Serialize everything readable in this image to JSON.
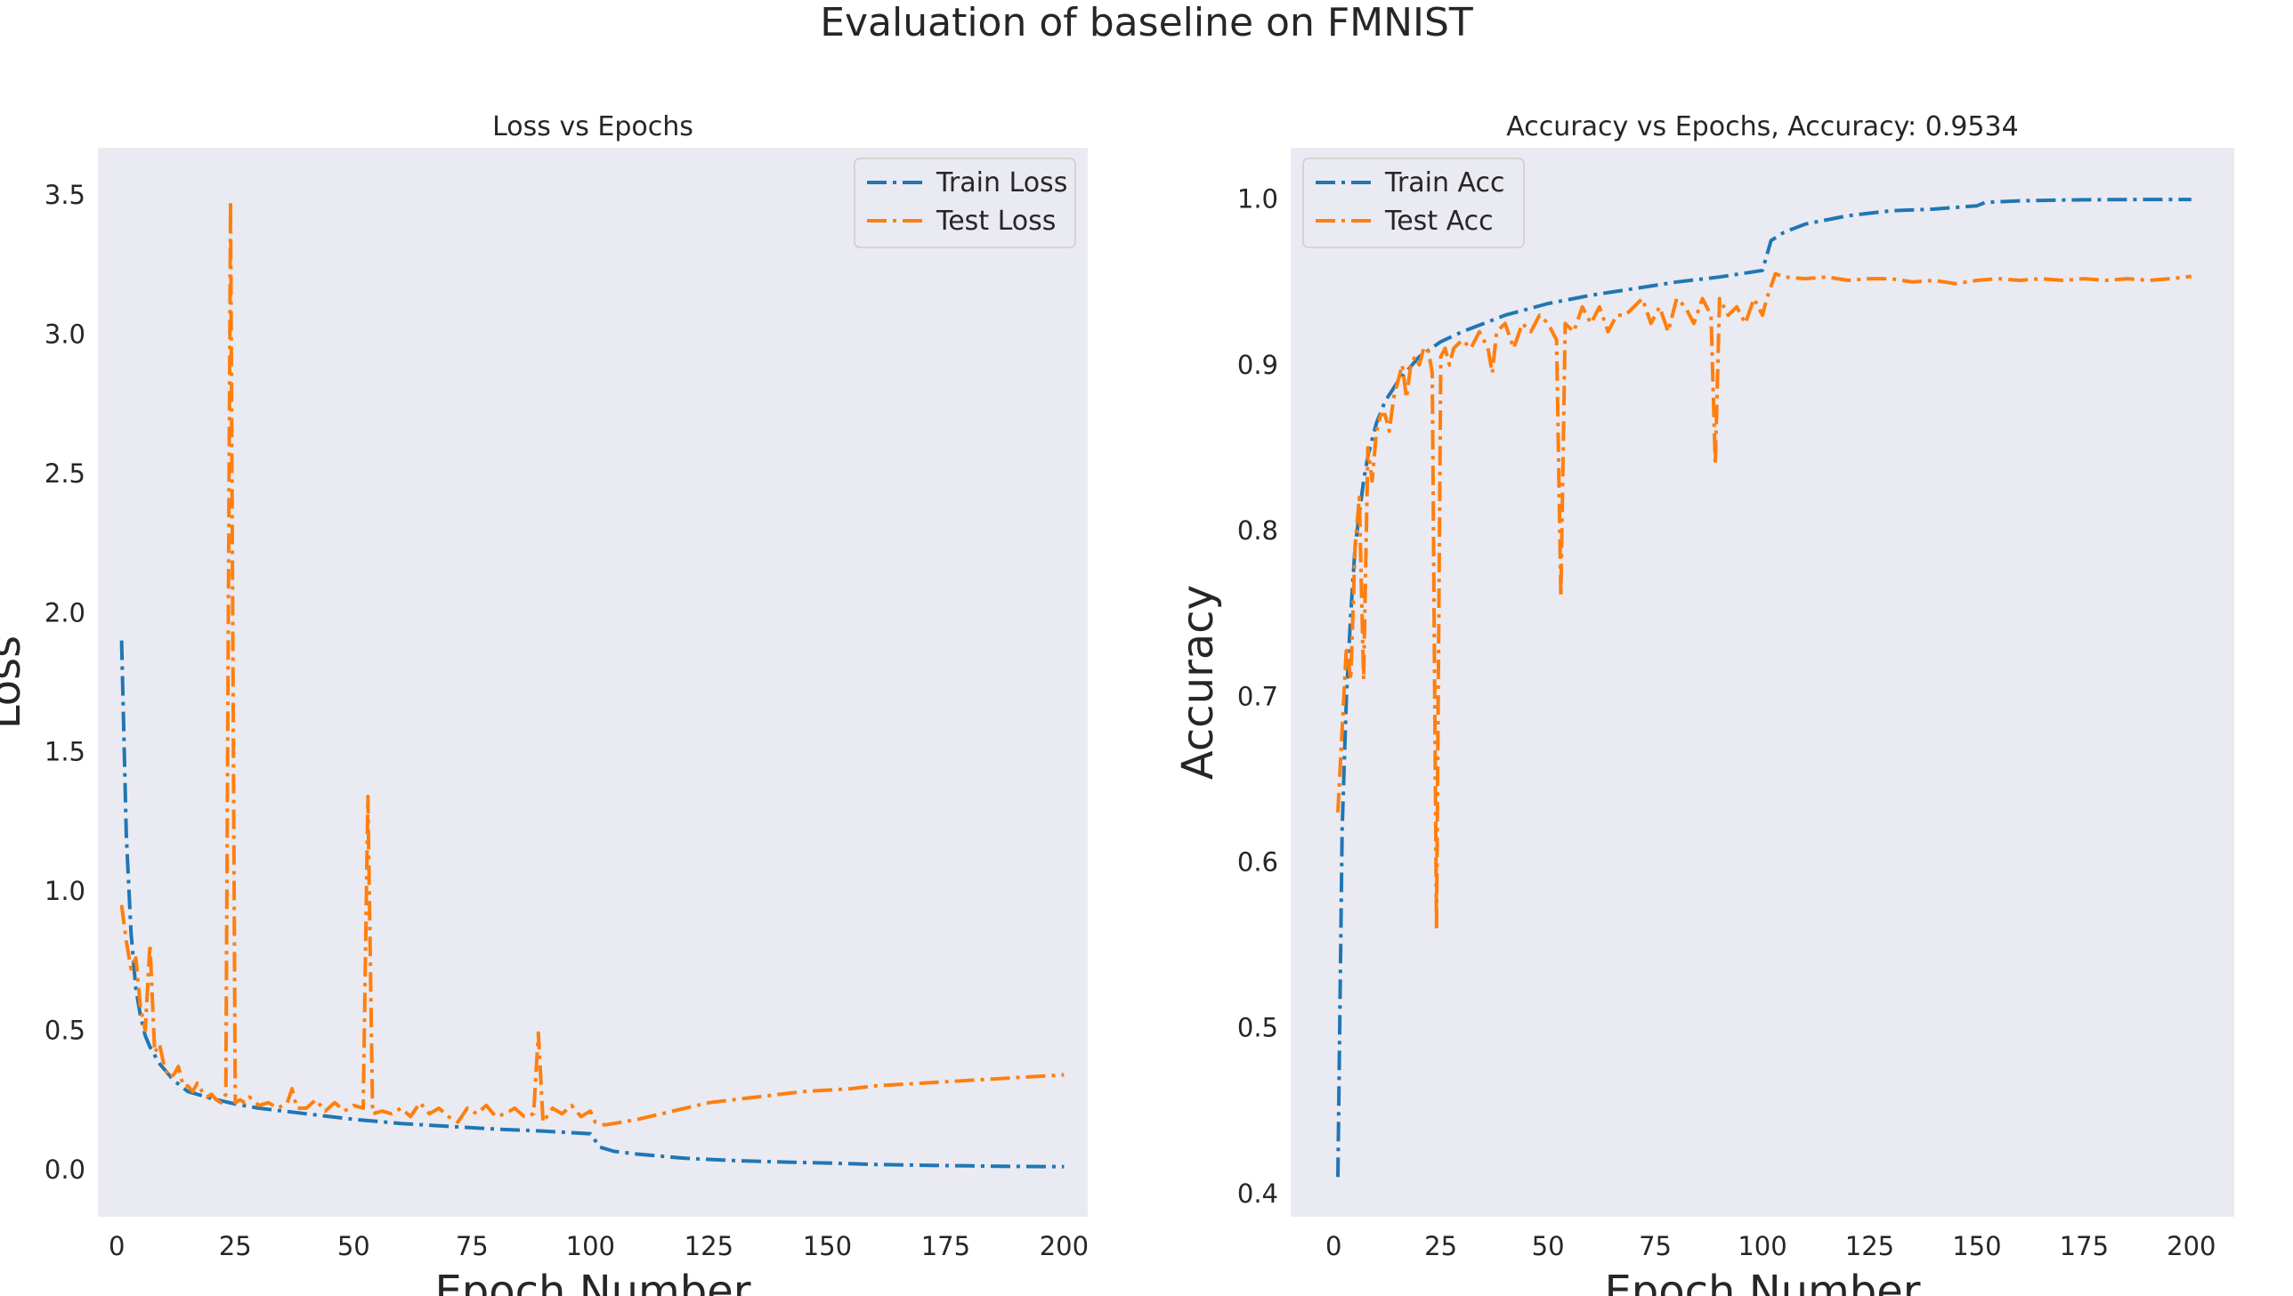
{
  "suptitle": "Evaluation of baseline on FMNIST",
  "chart_data": [
    {
      "type": "line",
      "title": "Loss vs Epochs",
      "xlabel": "Epoch Number",
      "ylabel": "Loss",
      "xlim": [
        -4,
        205
      ],
      "ylim": [
        -0.17,
        3.67
      ],
      "xticks": [
        0,
        25,
        50,
        75,
        100,
        125,
        150,
        175,
        200
      ],
      "xtick_labels": [
        "0",
        "25",
        "50",
        "75",
        "100",
        "125",
        "150",
        "175",
        "200"
      ],
      "yticks": [
        0.0,
        0.5,
        1.0,
        1.5,
        2.0,
        2.5,
        3.0,
        3.5
      ],
      "ytick_labels": [
        "0.0",
        "0.5",
        "1.0",
        "1.5",
        "2.0",
        "2.5",
        "3.0",
        "3.5"
      ],
      "grid": false,
      "legend_position": "top-right",
      "series": [
        {
          "name": "Train Loss",
          "color": "#1f77b4",
          "points": [
            [
              1,
              1.9
            ],
            [
              2,
              1.2
            ],
            [
              3,
              0.85
            ],
            [
              4,
              0.65
            ],
            [
              5,
              0.55
            ],
            [
              6,
              0.48
            ],
            [
              7,
              0.44
            ],
            [
              8,
              0.41
            ],
            [
              9,
              0.38
            ],
            [
              10,
              0.36
            ],
            [
              12,
              0.32
            ],
            [
              15,
              0.28
            ],
            [
              20,
              0.255
            ],
            [
              25,
              0.235
            ],
            [
              30,
              0.22
            ],
            [
              40,
              0.2
            ],
            [
              50,
              0.18
            ],
            [
              60,
              0.165
            ],
            [
              70,
              0.155
            ],
            [
              80,
              0.145
            ],
            [
              90,
              0.138
            ],
            [
              100,
              0.128
            ],
            [
              102,
              0.08
            ],
            [
              105,
              0.065
            ],
            [
              110,
              0.055
            ],
            [
              120,
              0.04
            ],
            [
              130,
              0.032
            ],
            [
              140,
              0.027
            ],
            [
              150,
              0.023
            ],
            [
              160,
              0.018
            ],
            [
              170,
              0.015
            ],
            [
              180,
              0.013
            ],
            [
              190,
              0.011
            ],
            [
              200,
              0.01
            ]
          ]
        },
        {
          "name": "Test Loss",
          "color": "#ff7f0e",
          "points": [
            [
              1,
              0.95
            ],
            [
              2,
              0.82
            ],
            [
              3,
              0.72
            ],
            [
              4,
              0.76
            ],
            [
              5,
              0.58
            ],
            [
              6,
              0.5
            ],
            [
              7,
              0.81
            ],
            [
              8,
              0.42
            ],
            [
              9,
              0.45
            ],
            [
              10,
              0.37
            ],
            [
              11,
              0.33
            ],
            [
              12,
              0.34
            ],
            [
              13,
              0.37
            ],
            [
              14,
              0.3
            ],
            [
              15,
              0.3
            ],
            [
              16,
              0.28
            ],
            [
              17,
              0.31
            ],
            [
              18,
              0.28
            ],
            [
              19,
              0.26
            ],
            [
              20,
              0.27
            ],
            [
              21,
              0.25
            ],
            [
              22,
              0.24
            ],
            [
              23,
              0.27
            ],
            [
              24,
              3.48
            ],
            [
              25,
              0.24
            ],
            [
              26,
              0.25
            ],
            [
              27,
              0.24
            ],
            [
              28,
              0.26
            ],
            [
              30,
              0.23
            ],
            [
              32,
              0.24
            ],
            [
              34,
              0.22
            ],
            [
              36,
              0.24
            ],
            [
              37,
              0.29
            ],
            [
              38,
              0.22
            ],
            [
              40,
              0.22
            ],
            [
              42,
              0.25
            ],
            [
              44,
              0.21
            ],
            [
              46,
              0.24
            ],
            [
              48,
              0.21
            ],
            [
              50,
              0.23
            ],
            [
              52,
              0.22
            ],
            [
              53,
              1.34
            ],
            [
              54,
              0.2
            ],
            [
              56,
              0.21
            ],
            [
              58,
              0.2
            ],
            [
              60,
              0.22
            ],
            [
              62,
              0.19
            ],
            [
              64,
              0.24
            ],
            [
              66,
              0.2
            ],
            [
              68,
              0.22
            ],
            [
              70,
              0.19
            ],
            [
              72,
              0.17
            ],
            [
              74,
              0.22
            ],
            [
              76,
              0.2
            ],
            [
              78,
              0.23
            ],
            [
              80,
              0.19
            ],
            [
              82,
              0.2
            ],
            [
              84,
              0.22
            ],
            [
              86,
              0.19
            ],
            [
              88,
              0.2
            ],
            [
              89,
              0.49
            ],
            [
              90,
              0.17
            ],
            [
              92,
              0.22
            ],
            [
              94,
              0.2
            ],
            [
              96,
              0.23
            ],
            [
              98,
              0.19
            ],
            [
              100,
              0.21
            ],
            [
              101,
              0.17
            ],
            [
              103,
              0.16
            ],
            [
              105,
              0.165
            ],
            [
              110,
              0.18
            ],
            [
              115,
              0.2
            ],
            [
              120,
              0.22
            ],
            [
              125,
              0.24
            ],
            [
              130,
              0.25
            ],
            [
              135,
              0.26
            ],
            [
              140,
              0.27
            ],
            [
              145,
              0.28
            ],
            [
              150,
              0.285
            ],
            [
              155,
              0.29
            ],
            [
              160,
              0.3
            ],
            [
              165,
              0.305
            ],
            [
              170,
              0.31
            ],
            [
              175,
              0.315
            ],
            [
              180,
              0.32
            ],
            [
              185,
              0.325
            ],
            [
              190,
              0.33
            ],
            [
              195,
              0.335
            ],
            [
              200,
              0.34
            ]
          ]
        }
      ]
    },
    {
      "type": "line",
      "title": "Accuracy vs Epochs, Accuracy: 0.9534",
      "xlabel": "Epoch Number",
      "ylabel": "Accuracy",
      "xlim": [
        -10,
        210
      ],
      "ylim": [
        0.386,
        1.031
      ],
      "xticks": [
        0,
        25,
        50,
        75,
        100,
        125,
        150,
        175,
        200
      ],
      "xtick_labels": [
        "0",
        "25",
        "50",
        "75",
        "100",
        "125",
        "150",
        "175",
        "200"
      ],
      "yticks": [
        0.4,
        0.5,
        0.6,
        0.7,
        0.8,
        0.9,
        1.0
      ],
      "ytick_labels": [
        "0.4",
        "0.5",
        "0.6",
        "0.7",
        "0.8",
        "0.9",
        "1.0"
      ],
      "grid": false,
      "legend_position": "top-left",
      "series": [
        {
          "name": "Train Acc",
          "color": "#1f77b4",
          "points": [
            [
              1,
              0.41
            ],
            [
              2,
              0.62
            ],
            [
              3,
              0.7
            ],
            [
              4,
              0.75
            ],
            [
              5,
              0.79
            ],
            [
              6,
              0.81
            ],
            [
              7,
              0.83
            ],
            [
              8,
              0.845
            ],
            [
              9,
              0.855
            ],
            [
              10,
              0.865
            ],
            [
              12,
              0.878
            ],
            [
              15,
              0.89
            ],
            [
              20,
              0.905
            ],
            [
              25,
              0.914
            ],
            [
              30,
              0.92
            ],
            [
              40,
              0.93
            ],
            [
              50,
              0.937
            ],
            [
              60,
              0.942
            ],
            [
              70,
              0.946
            ],
            [
              80,
              0.95
            ],
            [
              90,
              0.953
            ],
            [
              100,
              0.957
            ],
            [
              102,
              0.975
            ],
            [
              105,
              0.98
            ],
            [
              110,
              0.985
            ],
            [
              120,
              0.99
            ],
            [
              130,
              0.993
            ],
            [
              140,
              0.994
            ],
            [
              150,
              0.996
            ],
            [
              152,
              0.998
            ],
            [
              160,
              0.999
            ],
            [
              170,
              0.9995
            ],
            [
              180,
              0.9997
            ],
            [
              190,
              0.9998
            ],
            [
              200,
              0.9998
            ]
          ]
        },
        {
          "name": "Test Acc",
          "color": "#ff7f0e",
          "points": [
            [
              1,
              0.63
            ],
            [
              2,
              0.68
            ],
            [
              3,
              0.73
            ],
            [
              4,
              0.71
            ],
            [
              5,
              0.79
            ],
            [
              6,
              0.82
            ],
            [
              7,
              0.71
            ],
            [
              8,
              0.85
            ],
            [
              9,
              0.83
            ],
            [
              10,
              0.86
            ],
            [
              11,
              0.87
            ],
            [
              12,
              0.87
            ],
            [
              13,
              0.86
            ],
            [
              14,
              0.88
            ],
            [
              15,
              0.89
            ],
            [
              16,
              0.9
            ],
            [
              17,
              0.88
            ],
            [
              18,
              0.9
            ],
            [
              19,
              0.905
            ],
            [
              20,
              0.9
            ],
            [
              21,
              0.91
            ],
            [
              22,
              0.91
            ],
            [
              23,
              0.895
            ],
            [
              24,
              0.56
            ],
            [
              25,
              0.905
            ],
            [
              26,
              0.91
            ],
            [
              27,
              0.9
            ],
            [
              28,
              0.91
            ],
            [
              30,
              0.915
            ],
            [
              32,
              0.91
            ],
            [
              34,
              0.92
            ],
            [
              36,
              0.91
            ],
            [
              37,
              0.895
            ],
            [
              38,
              0.92
            ],
            [
              40,
              0.925
            ],
            [
              42,
              0.91
            ],
            [
              44,
              0.925
            ],
            [
              46,
              0.92
            ],
            [
              48,
              0.93
            ],
            [
              50,
              0.925
            ],
            [
              52,
              0.915
            ],
            [
              53,
              0.76
            ],
            [
              54,
              0.925
            ],
            [
              56,
              0.92
            ],
            [
              58,
              0.935
            ],
            [
              60,
              0.925
            ],
            [
              62,
              0.935
            ],
            [
              64,
              0.92
            ],
            [
              66,
              0.93
            ],
            [
              68,
              0.93
            ],
            [
              70,
              0.935
            ],
            [
              72,
              0.94
            ],
            [
              74,
              0.925
            ],
            [
              76,
              0.935
            ],
            [
              78,
              0.92
            ],
            [
              80,
              0.94
            ],
            [
              82,
              0.935
            ],
            [
              84,
              0.925
            ],
            [
              86,
              0.94
            ],
            [
              88,
              0.93
            ],
            [
              89,
              0.84
            ],
            [
              90,
              0.94
            ],
            [
              92,
              0.93
            ],
            [
              94,
              0.935
            ],
            [
              96,
              0.925
            ],
            [
              98,
              0.94
            ],
            [
              100,
              0.93
            ],
            [
              101,
              0.94
            ],
            [
              103,
              0.955
            ],
            [
              105,
              0.953
            ],
            [
              110,
              0.952
            ],
            [
              115,
              0.953
            ],
            [
              120,
              0.951
            ],
            [
              125,
              0.952
            ],
            [
              130,
              0.952
            ],
            [
              135,
              0.95
            ],
            [
              140,
              0.951
            ],
            [
              145,
              0.949
            ],
            [
              150,
              0.951
            ],
            [
              155,
              0.952
            ],
            [
              160,
              0.951
            ],
            [
              165,
              0.952
            ],
            [
              170,
              0.951
            ],
            [
              175,
              0.952
            ],
            [
              180,
              0.951
            ],
            [
              185,
              0.952
            ],
            [
              190,
              0.951
            ],
            [
              195,
              0.952
            ],
            [
              200,
              0.9534
            ]
          ]
        }
      ]
    }
  ]
}
